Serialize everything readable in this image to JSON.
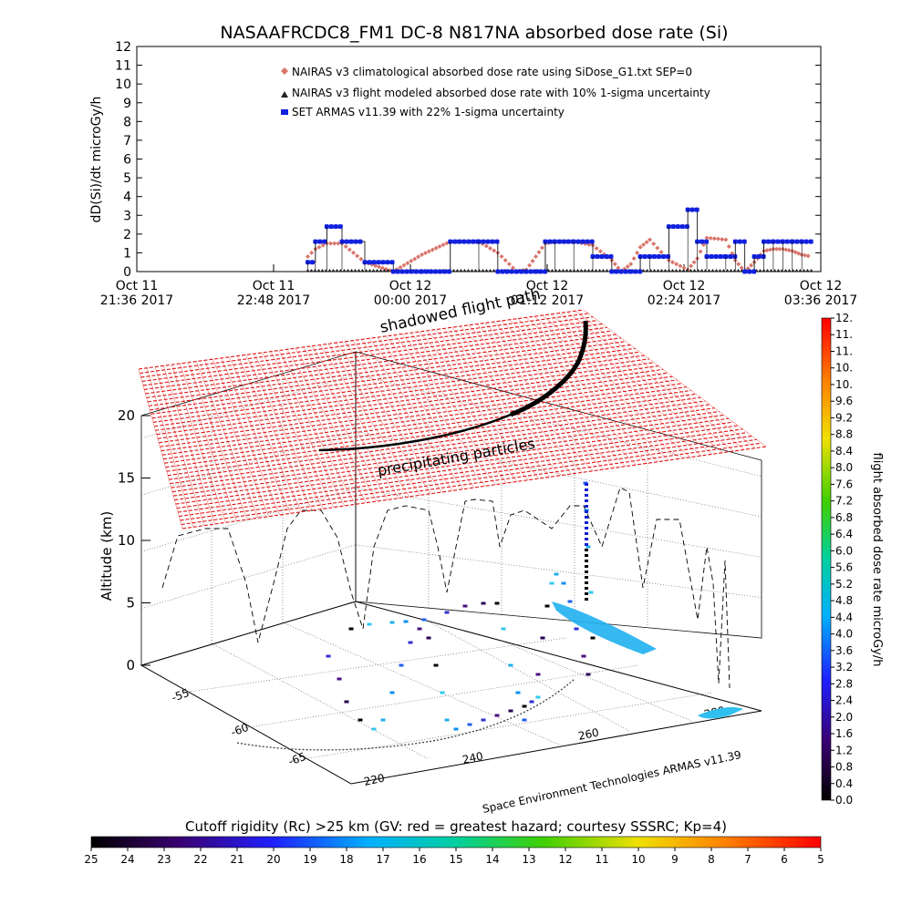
{
  "title": "NASAAFRCDC8_FM1 DC-8    N817NA absorbed dose rate (Si)",
  "colors": {
    "nairas_climatological": "#d9756b",
    "nairas_flight": "#222222",
    "armas": "#1020e0",
    "rigidity_grid": "#e01010",
    "flight_path": "#000000",
    "ground_track": "#000000"
  },
  "chart_data": [
    {
      "type": "line",
      "title": "",
      "xlabel": "",
      "ylabel": "dD(Si)/dt microGy/h",
      "ylim": [
        0,
        12
      ],
      "yticks": [
        "0",
        "1",
        "2",
        "3",
        "4",
        "5",
        "6",
        "7",
        "8",
        "9",
        "10",
        "11",
        "12"
      ],
      "xticks": [
        {
          "line1": "Oct 11",
          "line2": "21:36 2017"
        },
        {
          "line1": "Oct 11",
          "line2": "22:48 2017"
        },
        {
          "line1": "Oct 12",
          "line2": "00:00 2017"
        },
        {
          "line1": "Oct 12",
          "line2": "01:12 2017"
        },
        {
          "line1": "Oct 12",
          "line2": "02:24 2017"
        },
        {
          "line1": "Oct 12",
          "line2": "03:36 2017"
        }
      ],
      "legend_position": "top",
      "legend": [
        "NAIRAS v3 climatological absorbed dose rate using SiDose_G1.txt SEP=0",
        "NAIRAS v3 flight modeled absorbed dose rate with 10% 1-sigma uncertainty",
        "SET ARMAS v11.39 with 22% 1-sigma uncertainty"
      ],
      "x_minutes_since_first_tick": [
        0,
        90,
        94,
        100,
        108,
        120,
        135,
        150,
        165,
        180,
        190,
        200,
        205,
        210,
        215,
        220,
        230,
        240,
        250,
        255,
        260,
        265,
        270,
        280,
        290,
        295,
        300,
        310,
        315,
        320,
        325,
        330,
        335,
        340,
        345,
        350,
        355
      ],
      "series": [
        {
          "name": "NAIRAS v3 climatological absorbed dose rate using SiDose_G1.txt SEP=0",
          "values": [
            null,
            0.8,
            1.2,
            1.5,
            1.5,
            0.5,
            0.0,
            0.9,
            1.6,
            1.6,
            1.0,
            0.0,
            0.1,
            0.8,
            1.5,
            1.6,
            1.6,
            1.4,
            0.6,
            0.0,
            0.4,
            1.3,
            1.7,
            0.6,
            0.1,
            0.7,
            1.8,
            1.7,
            0.6,
            0.0,
            0.5,
            1.1,
            1.2,
            1.2,
            1.1,
            0.9,
            0.8
          ]
        },
        {
          "name": "NAIRAS v3 flight modeled absorbed dose rate with 10% 1-sigma uncertainty",
          "values": [
            null,
            0.0,
            0.0,
            0.0,
            0.0,
            0.0,
            0.0,
            0.0,
            0.0,
            0.0,
            0.0,
            0.0,
            0.0,
            0.0,
            0.0,
            0.0,
            0.0,
            0.0,
            0.0,
            0.0,
            0.0,
            0.0,
            0.0,
            0.0,
            0.0,
            0.0,
            0.0,
            0.0,
            0.0,
            0.0,
            0.0,
            0.0,
            0.0,
            0.0,
            0.0,
            0.0,
            0.0
          ]
        },
        {
          "name": "SET ARMAS v11.39 with 22% 1-sigma uncertainty",
          "values": [
            null,
            0.5,
            1.6,
            2.4,
            1.6,
            0.5,
            0.0,
            0.0,
            1.6,
            1.6,
            0.0,
            0.0,
            0.0,
            0.0,
            1.6,
            1.6,
            1.6,
            0.8,
            0.0,
            0.0,
            0.0,
            0.8,
            0.8,
            2.4,
            3.3,
            1.6,
            0.8,
            0.8,
            1.6,
            0.0,
            0.8,
            1.6,
            1.6,
            1.6,
            1.6,
            1.6,
            1.6
          ]
        }
      ]
    },
    {
      "type": "scatter",
      "title": "",
      "zlabel": "Altitude (km)",
      "zlim": [
        0,
        22
      ],
      "zticks": [
        "0",
        "5",
        "10",
        "15",
        "20"
      ],
      "lat_ticks": [
        "-55",
        "-60",
        "-65"
      ],
      "lon_ticks": [
        "220",
        "240",
        "260",
        "280"
      ],
      "annotations": [
        "shadowed flight path",
        "precipitating particles",
        "Space Environment Technologies ARMAS v11.39"
      ],
      "colorbar": {
        "label": "flight absorbed dose rate microGy/h",
        "ticks": [
          "0.0",
          "0.4",
          "0.8",
          "1.2",
          "1.6",
          "2.0",
          "2.4",
          "2.8",
          "3.2",
          "3.6",
          "4.0",
          "4.4",
          "4.8",
          "5.2",
          "5.6",
          "6.0",
          "6.4",
          "6.8",
          "7.2",
          "7.6",
          "8.0",
          "8.4",
          "8.8",
          "9.2",
          "9.6",
          "10.",
          "10.",
          "11.",
          "11.",
          "12."
        ]
      },
      "flight_path_dose": [
        0.0,
        0.4,
        0.8,
        1.2,
        1.6,
        2.0,
        2.8,
        3.6,
        4.4,
        2.4,
        1.2,
        0.4
      ]
    },
    {
      "type": "heatmap",
      "title": "Cutoff rigidity (Rc) >25 km (GV: red = greatest hazard; courtesy SSSRC; Kp=4)",
      "ticks": [
        "25",
        "24",
        "23",
        "22",
        "21",
        "20",
        "19",
        "18",
        "17",
        "16",
        "15",
        "14",
        "13",
        "12",
        "11",
        "10",
        "9",
        "8",
        "7",
        "6",
        "5"
      ]
    }
  ]
}
